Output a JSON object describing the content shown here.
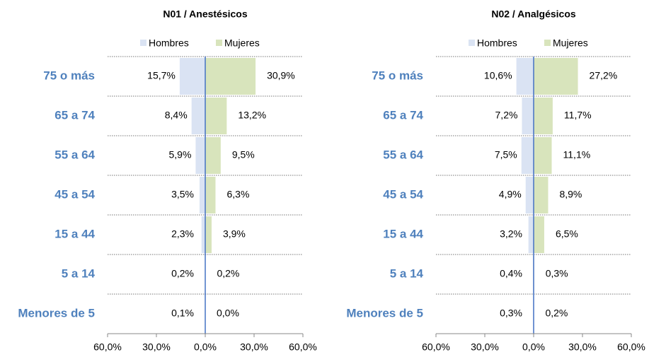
{
  "chart_data": [
    {
      "type": "bar",
      "orientation": "horizontal",
      "title": "N01 / Anestésicos",
      "categories": [
        "75 o más",
        "65 a 74",
        "55 a 64",
        "45 a 54",
        "15 a 44",
        "5 a 14",
        "Menores de 5"
      ],
      "series": [
        {
          "name": "Hombres",
          "color": "#dae3f3",
          "values": [
            -15.7,
            -8.4,
            -5.9,
            -3.5,
            -2.3,
            -0.2,
            -0.1
          ],
          "value_labels": [
            "15,7%",
            "8,4%",
            "5,9%",
            "3,5%",
            "2,3%",
            "0,2%",
            "0,1%"
          ]
        },
        {
          "name": "Mujeres",
          "color": "#d8e4bc",
          "values": [
            30.9,
            13.2,
            9.5,
            6.3,
            3.9,
            0.2,
            0.0
          ],
          "value_labels": [
            "30,9%",
            "13,2%",
            "9,5%",
            "6,3%",
            "3,9%",
            "0,2%",
            "0,0%"
          ]
        }
      ],
      "xlim": [
        -60,
        60
      ],
      "xticks": [
        {
          "value": -60,
          "label": "60,0%"
        },
        {
          "value": -30,
          "label": "30,0%"
        },
        {
          "value": 0,
          "label": "0,0%"
        },
        {
          "value": 30,
          "label": "30,0%"
        },
        {
          "value": 60,
          "label": "60,0%"
        }
      ]
    },
    {
      "type": "bar",
      "orientation": "horizontal",
      "title": "N02 / Analgésicos",
      "categories": [
        "75 o más",
        "65 a 74",
        "55 a 64",
        "45 a 54",
        "15 a 44",
        "5 a 14",
        "Menores de 5"
      ],
      "series": [
        {
          "name": "Hombres",
          "color": "#dae3f3",
          "values": [
            -10.6,
            -7.2,
            -7.5,
            -4.9,
            -3.2,
            -0.4,
            -0.3
          ],
          "value_labels": [
            "10,6%",
            "7,2%",
            "7,5%",
            "4,9%",
            "3,2%",
            "0,4%",
            "0,3%"
          ]
        },
        {
          "name": "Mujeres",
          "color": "#d8e4bc",
          "values": [
            27.2,
            11.7,
            11.1,
            8.9,
            6.5,
            0.3,
            0.2
          ],
          "value_labels": [
            "27,2%",
            "11,7%",
            "11,1%",
            "8,9%",
            "6,5%",
            "0,3%",
            "0,2%"
          ]
        }
      ],
      "xlim": [
        -60,
        60
      ],
      "xticks": [
        {
          "value": -60,
          "label": "60,0%"
        },
        {
          "value": -30,
          "label": "30,0%"
        },
        {
          "value": 0,
          "label": "0,0%"
        },
        {
          "value": 30,
          "label": "30,0%"
        },
        {
          "value": 60,
          "label": "60,0%"
        }
      ]
    }
  ]
}
